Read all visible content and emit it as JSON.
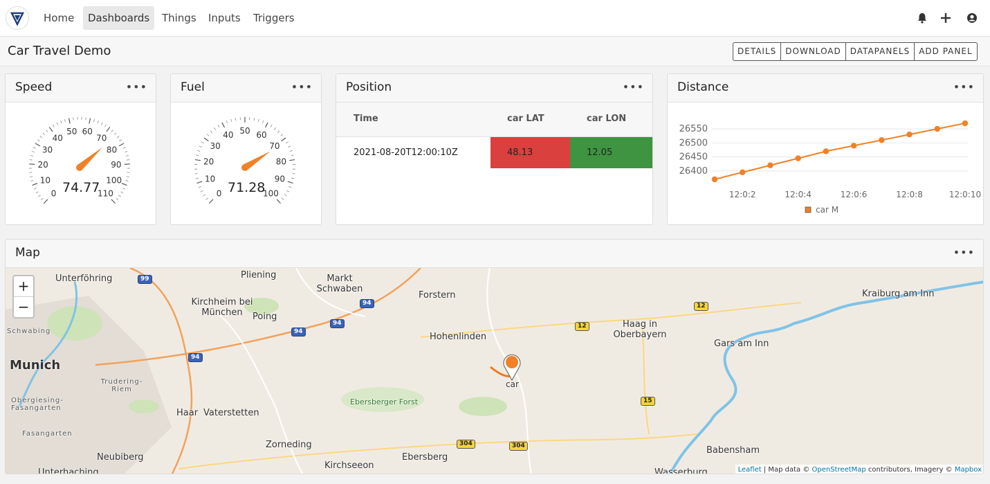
{
  "nav": {
    "items": [
      {
        "label": "Home",
        "active": false
      },
      {
        "label": "Dashboards",
        "active": true
      },
      {
        "label": "Things",
        "active": false
      },
      {
        "label": "Inputs",
        "active": false
      },
      {
        "label": "Triggers",
        "active": false
      }
    ],
    "right_icons": [
      "bell-icon",
      "plus-icon",
      "user-icon"
    ]
  },
  "page": {
    "title": "Car Travel Demo",
    "buttons": [
      "DETAILS",
      "DOWNLOAD",
      "DATAPANELS",
      "ADD PANEL"
    ]
  },
  "panels": {
    "speed": {
      "title": "Speed",
      "menu": "•••",
      "value": "74.77",
      "gauge": {
        "min": 0,
        "max": 110,
        "reading": 74.77,
        "ticks": [
          "0",
          "10",
          "20",
          "30",
          "40",
          "50",
          "60",
          "70",
          "80",
          "90",
          "100",
          "110"
        ]
      }
    },
    "fuel": {
      "title": "Fuel",
      "menu": "•••",
      "value": "71.28",
      "gauge": {
        "min": 0,
        "max": 100,
        "reading": 71.28,
        "ticks": [
          "0",
          "10",
          "20",
          "30",
          "40",
          "50",
          "60",
          "70",
          "80",
          "90",
          "100"
        ]
      }
    },
    "position": {
      "title": "Position",
      "menu": "•••",
      "columns": [
        "Time",
        "car LAT",
        "car LON"
      ],
      "rows": [
        [
          "2021-08-20T12:00:10Z",
          "48.13",
          "12.05"
        ]
      ],
      "cell_colors": {
        "lat": "#d9403e",
        "lon": "#3e9440"
      }
    },
    "distance": {
      "title": "Distance",
      "menu": "•••",
      "legend": "car M"
    },
    "map": {
      "title": "Map",
      "menu": "•••",
      "zoom_in": "+",
      "zoom_out": "−",
      "marker_label": "car",
      "places": [
        "Unterföhring",
        "Pliening",
        "Markt Schwaben",
        "Forstern",
        "Kraiburg am Inn",
        "Kirchheim bei München",
        "Poing",
        "Hohenlinden",
        "Haag in Oberbayern",
        "Gars am Inn",
        "Munich",
        "Schwabing",
        "Trudering-Riem",
        "Obergiesing-Fasangarten",
        "Fasangarten",
        "Haar",
        "Vaterstetten",
        "Ebersberger Forst",
        "Zorneding",
        "Ebersberg",
        "Babensham",
        "Neubiberg",
        "Kirchseeon",
        "Unterhaching",
        "Wasserburg"
      ],
      "road_badges": [
        "99",
        "94",
        "94",
        "94",
        "94",
        "12",
        "12",
        "15",
        "304",
        "304"
      ],
      "attribution": {
        "leaflet": "Leaflet",
        "sep": " | Map data © ",
        "osm": "OpenStreetMap",
        "mid": " contributors, Imagery © ",
        "mapbox": "Mapbox"
      }
    }
  },
  "chart_data": {
    "type": "line",
    "x": [
      "12:0:1",
      "12:0:2",
      "12:0:3",
      "12:0:4",
      "12:0:5",
      "12:0:6",
      "12:0:7",
      "12:0:8",
      "12:0:9",
      "12:0:10"
    ],
    "xticks": [
      "12:0:2",
      "12:0:4",
      "12:0:6",
      "12:0:8",
      "12:0:10"
    ],
    "series": [
      {
        "name": "car M",
        "values": [
          26370,
          26395,
          26420,
          26445,
          26470,
          26490,
          26510,
          26530,
          26550,
          26570
        ],
        "color": "#f08127"
      }
    ],
    "ylim": [
      26365,
      26575
    ],
    "yticks": [
      26400,
      26450,
      26500,
      26550
    ],
    "grid": true,
    "legend": "bottom"
  }
}
